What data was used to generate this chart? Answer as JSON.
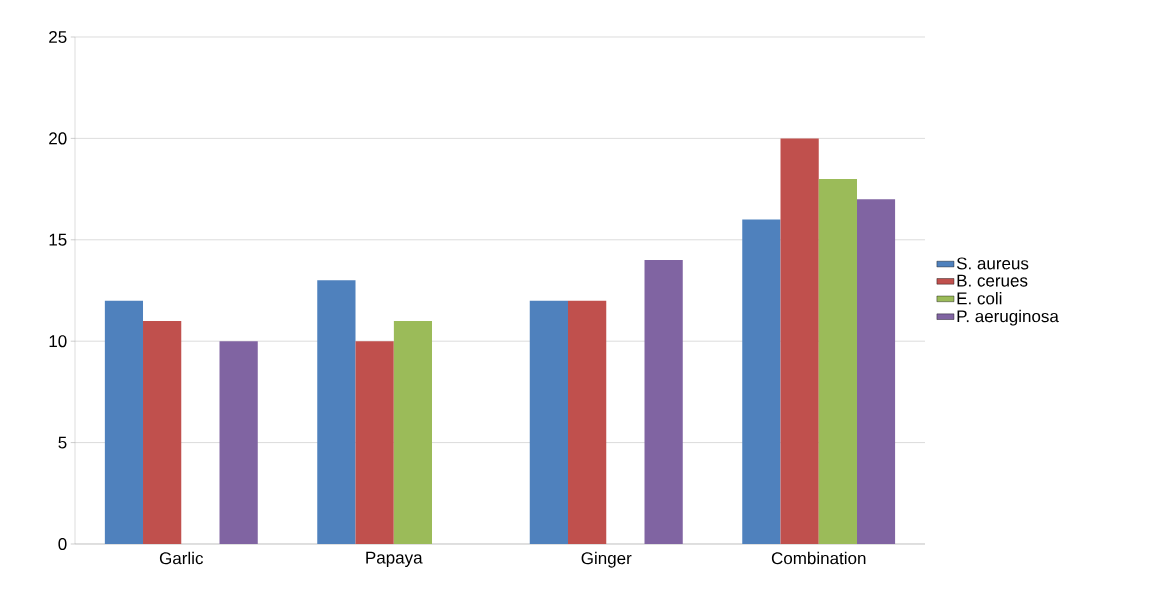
{
  "chart_data": {
    "type": "bar",
    "categories": [
      "Garlic",
      "Papaya",
      "Ginger",
      "Combination"
    ],
    "series": [
      {
        "name": "S. aureus",
        "color": "#4f81bd",
        "values": [
          12,
          13,
          12,
          16
        ]
      },
      {
        "name": "B. cerues",
        "color": "#c0504d",
        "values": [
          11,
          10,
          12,
          20
        ]
      },
      {
        "name": "E. coli",
        "color": "#9bbb59",
        "values": [
          null,
          11,
          null,
          18
        ]
      },
      {
        "name": "P. aeruginosa",
        "color": "#8064a2",
        "values": [
          10,
          null,
          14,
          17
        ]
      }
    ],
    "ylim": [
      0,
      25
    ],
    "yticks": [
      0,
      5,
      10,
      15,
      20,
      25
    ],
    "grid": "y",
    "legend": "right"
  }
}
